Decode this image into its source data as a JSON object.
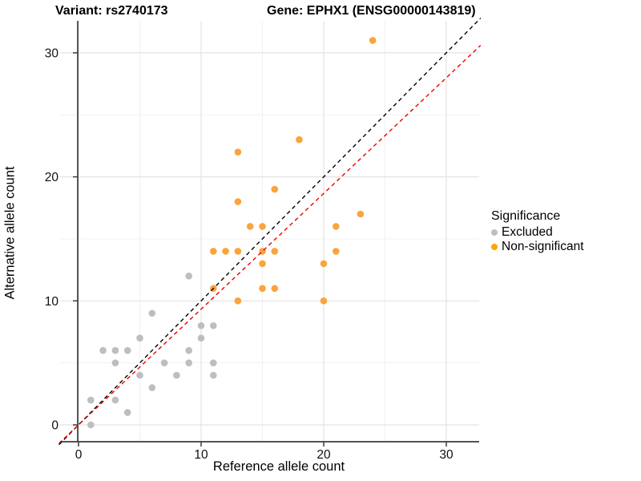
{
  "titles": {
    "left": "Variant: rs2740173",
    "right": "Gene: EPHX1 (ENSG00000143819)"
  },
  "chart_data": {
    "type": "scatter",
    "xlabel": "Reference allele count",
    "ylabel": "Alternative allele count",
    "x_ticks": [
      0,
      10,
      20,
      30
    ],
    "y_ticks": [
      0,
      10,
      20,
      30
    ],
    "x_minor": [
      5,
      15,
      25
    ],
    "y_minor": [
      5,
      15,
      25
    ],
    "xlim": [
      -1.55,
      32.75
    ],
    "ylim": [
      -1.55,
      32.55
    ],
    "grid": "on",
    "series": [
      {
        "name": "Excluded",
        "color": "#BEBEBE",
        "points": [
          [
            1,
            0
          ],
          [
            1,
            2
          ],
          [
            2,
            6
          ],
          [
            3,
            2
          ],
          [
            3,
            5
          ],
          [
            3,
            6
          ],
          [
            4,
            1
          ],
          [
            4,
            6
          ],
          [
            5,
            4
          ],
          [
            5,
            7
          ],
          [
            6,
            3
          ],
          [
            6,
            9
          ],
          [
            7,
            5
          ],
          [
            8,
            4
          ],
          [
            9,
            5
          ],
          [
            9,
            6
          ],
          [
            9,
            12
          ],
          [
            10,
            7
          ],
          [
            10,
            8
          ],
          [
            11,
            4
          ],
          [
            11,
            5
          ],
          [
            11,
            8
          ]
        ]
      },
      {
        "name": "Non-significant",
        "color": "#FAA43C",
        "points": [
          [
            11,
            11
          ],
          [
            11,
            14
          ],
          [
            12,
            14
          ],
          [
            13,
            10
          ],
          [
            13,
            14
          ],
          [
            13,
            18
          ],
          [
            13,
            22
          ],
          [
            14,
            16
          ],
          [
            15,
            11
          ],
          [
            15,
            13
          ],
          [
            15,
            14
          ],
          [
            15,
            16
          ],
          [
            16,
            11
          ],
          [
            16,
            14
          ],
          [
            16,
            19
          ],
          [
            18,
            23
          ],
          [
            20,
            10
          ],
          [
            20,
            13
          ],
          [
            21,
            14
          ],
          [
            21,
            16
          ],
          [
            23,
            17
          ],
          [
            24,
            31
          ]
        ]
      }
    ],
    "lines": [
      {
        "name": "identity",
        "color": "#000000",
        "style": "dashed",
        "slope": 1.0,
        "intercept": 0
      },
      {
        "name": "fit",
        "color": "#EC0000",
        "style": "dashed",
        "slope": 0.933,
        "intercept": 0
      }
    ],
    "legend": {
      "title": "Significance",
      "position": "right",
      "items": [
        {
          "label": "Excluded",
          "color": "#BEBEBE"
        },
        {
          "label": "Non-significant",
          "color": "#FFA500"
        }
      ]
    },
    "colors": {
      "grid_major": "#E3E3E3",
      "grid_minor": "#F1F1F1",
      "axis": "#3C3C3C"
    }
  }
}
